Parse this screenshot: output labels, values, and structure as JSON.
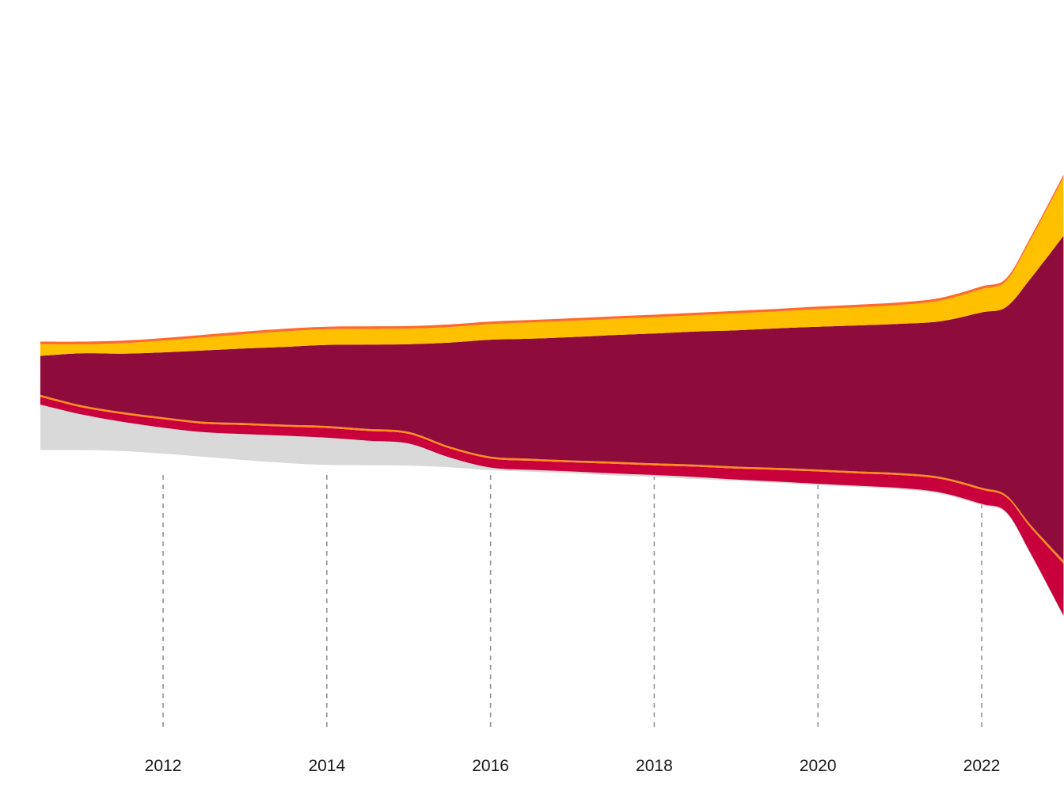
{
  "chart_data": {
    "type": "area",
    "subtype": "streamgraph",
    "title": "",
    "xlabel": "",
    "ylabel": "",
    "x_ticks": [
      "2012",
      "2014",
      "2016",
      "2018",
      "2020",
      "2022"
    ],
    "grid": "vertical dashed lines at x ticks",
    "legend": "none",
    "x": [
      2010.5,
      2011,
      2011.5,
      2012,
      2012.5,
      2013,
      2013.5,
      2014,
      2014.5,
      2015,
      2015.5,
      2016,
      2016.5,
      2017,
      2017.5,
      2018,
      2018.5,
      2019,
      2019.5,
      2020,
      2020.5,
      2021,
      2021.5,
      2022,
      2022.3,
      2022.6,
      2023
    ],
    "series": [
      {
        "color": "#d9d9d9",
        "values": [
          7,
          5.5,
          4.5,
          4,
          3.8,
          4,
          4.2,
          4.2,
          3.8,
          3.4,
          1.5,
          0.4,
          0.3,
          0.3,
          0.3,
          0.3,
          0.3,
          0.2,
          0.2,
          0.2,
          0.2,
          0.2,
          0.2,
          0.2,
          0.2,
          0.2,
          0.2
        ]
      },
      {
        "color": "#c8003c",
        "values": [
          1.2,
          1.1,
          1.2,
          1.3,
          1.3,
          1.4,
          1.4,
          1.5,
          1.5,
          1.5,
          1.4,
          1.4,
          1.4,
          1.4,
          1.5,
          1.5,
          1.6,
          1.7,
          1.8,
          1.9,
          1.9,
          2.0,
          2.1,
          2.2,
          2.3,
          4.0,
          8.0
        ]
      },
      {
        "color": "#ff8c1a",
        "values": [
          0.3,
          0.3,
          0.3,
          0.3,
          0.3,
          0.3,
          0.3,
          0.3,
          0.3,
          0.3,
          0.3,
          0.3,
          0.3,
          0.3,
          0.3,
          0.3,
          0.3,
          0.3,
          0.3,
          0.3,
          0.3,
          0.3,
          0.3,
          0.3,
          0.3,
          0.4,
          0.5
        ]
      },
      {
        "color": "#8e0c3c",
        "values": [
          6,
          8,
          9,
          10,
          11,
          11.5,
          12,
          12.5,
          13,
          13.5,
          16,
          18,
          18.5,
          19,
          19.5,
          20,
          20.5,
          21,
          21.5,
          22,
          22.5,
          23,
          24,
          27,
          29,
          38,
          50
        ]
      },
      {
        "color": "#ffc000",
        "values": [
          1.8,
          1.4,
          1.6,
          1.8,
          2.0,
          2.2,
          2.4,
          2.4,
          2.4,
          2.4,
          2.4,
          2.4,
          2.5,
          2.5,
          2.5,
          2.5,
          2.5,
          2.6,
          2.6,
          2.7,
          2.8,
          2.9,
          3.2,
          3.6,
          4.0,
          6.0,
          9.0
        ]
      },
      {
        "color": "#ff6a2c",
        "values": [
          0.4,
          0.4,
          0.4,
          0.4,
          0.4,
          0.4,
          0.4,
          0.4,
          0.4,
          0.4,
          0.4,
          0.4,
          0.4,
          0.4,
          0.4,
          0.4,
          0.4,
          0.4,
          0.4,
          0.4,
          0.4,
          0.4,
          0.4,
          0.4,
          0.4,
          0.4,
          0.4
        ]
      }
    ],
    "xlim": [
      2010,
      2023
    ],
    "ylim": [
      -42,
      42
    ]
  }
}
